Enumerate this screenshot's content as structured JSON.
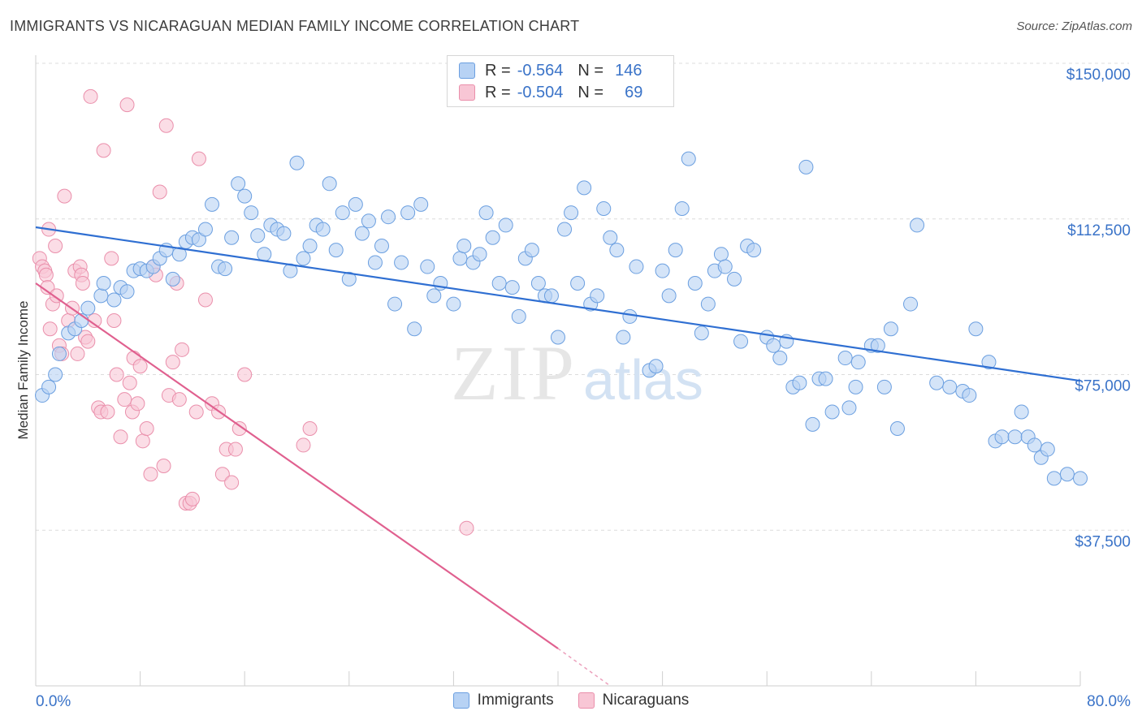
{
  "title": "IMMIGRANTS VS NICARAGUAN MEDIAN FAMILY INCOME CORRELATION CHART",
  "source": "Source: ZipAtlas.com",
  "watermark": {
    "zip": "ZIP",
    "atlas": "atlas"
  },
  "colors": {
    "immigrants_fill": "#b7d2f4",
    "immigrants_stroke": "#6b9fe0",
    "immigrants_line": "#2f6fd2",
    "nicaraguans_fill": "#f8c6d5",
    "nicaraguans_stroke": "#ea8fab",
    "nicaraguans_line": "#e0608f",
    "axis_label": "#3a73c8",
    "grid": "#dcdcdc"
  },
  "legend": {
    "rows": [
      {
        "r_label": "R =",
        "r_value": "-0.564",
        "n_label": "N =",
        "n_value": "146"
      },
      {
        "r_label": "R =",
        "r_value": "-0.504",
        "n_label": "N =",
        "n_value": "69"
      }
    ]
  },
  "bottom_legend": {
    "immigrants": "Immigrants",
    "nicaraguans": "Nicaraguans"
  },
  "chart_data": {
    "type": "scatter",
    "title": "IMMIGRANTS VS NICARAGUAN MEDIAN FAMILY INCOME CORRELATION CHART",
    "xlabel": "",
    "ylabel": "Median Family Income",
    "xlim": [
      0,
      80
    ],
    "ylim": [
      0,
      150000
    ],
    "x_tick_labels": [
      "0.0%",
      "80.0%"
    ],
    "y_ticks": [
      37500,
      75000,
      112500,
      150000
    ],
    "y_tick_labels": [
      "$37,500",
      "$75,000",
      "$112,500",
      "$150,000"
    ],
    "grid": "horizontal dashed",
    "legend_placement": "top-center",
    "series": [
      {
        "name": "Immigrants",
        "R": -0.564,
        "N": 146,
        "trend": {
          "x": [
            0,
            80
          ],
          "y": [
            110500,
            73500
          ]
        },
        "points": [
          [
            0.5,
            70000
          ],
          [
            1,
            72000
          ],
          [
            1.5,
            75000
          ],
          [
            1.8,
            80000
          ],
          [
            2.5,
            85000
          ],
          [
            3,
            86000
          ],
          [
            3.5,
            88000
          ],
          [
            4,
            91000
          ],
          [
            5,
            94000
          ],
          [
            5.2,
            97000
          ],
          [
            6,
            93000
          ],
          [
            6.5,
            96000
          ],
          [
            7,
            95000
          ],
          [
            7.5,
            100000
          ],
          [
            8,
            100500
          ],
          [
            8.5,
            100000
          ],
          [
            9,
            101000
          ],
          [
            9.5,
            103000
          ],
          [
            10,
            105000
          ],
          [
            10.5,
            98000
          ],
          [
            11,
            104000
          ],
          [
            11.5,
            107000
          ],
          [
            12,
            108000
          ],
          [
            12.5,
            107500
          ],
          [
            13,
            110000
          ],
          [
            13.5,
            116000
          ],
          [
            14,
            101000
          ],
          [
            14.5,
            100500
          ],
          [
            15,
            108000
          ],
          [
            15.5,
            121000
          ],
          [
            16,
            118000
          ],
          [
            16.5,
            114000
          ],
          [
            17,
            108500
          ],
          [
            17.5,
            104000
          ],
          [
            18,
            111000
          ],
          [
            18.5,
            110000
          ],
          [
            19,
            109000
          ],
          [
            19.5,
            100000
          ],
          [
            20,
            126000
          ],
          [
            20.5,
            103000
          ],
          [
            21,
            106000
          ],
          [
            21.5,
            111000
          ],
          [
            22,
            110000
          ],
          [
            22.5,
            121000
          ],
          [
            23,
            105000
          ],
          [
            23.5,
            114000
          ],
          [
            24,
            98000
          ],
          [
            24.5,
            116000
          ],
          [
            25,
            109000
          ],
          [
            25.5,
            112000
          ],
          [
            26,
            102000
          ],
          [
            26.5,
            106000
          ],
          [
            27,
            113000
          ],
          [
            27.5,
            92000
          ],
          [
            28,
            102000
          ],
          [
            28.5,
            114000
          ],
          [
            29,
            86000
          ],
          [
            29.5,
            116000
          ],
          [
            30,
            101000
          ],
          [
            30.5,
            94000
          ],
          [
            31,
            97000
          ],
          [
            32,
            92000
          ],
          [
            32.5,
            103000
          ],
          [
            32.8,
            106000
          ],
          [
            33.5,
            102000
          ],
          [
            34,
            104000
          ],
          [
            34.5,
            114000
          ],
          [
            35,
            108000
          ],
          [
            35.5,
            97000
          ],
          [
            36,
            111000
          ],
          [
            36.5,
            96000
          ],
          [
            37,
            89000
          ],
          [
            37.5,
            103000
          ],
          [
            38,
            105000
          ],
          [
            38.5,
            97000
          ],
          [
            39,
            94000
          ],
          [
            39.5,
            94000
          ],
          [
            40,
            84000
          ],
          [
            40.5,
            110000
          ],
          [
            41,
            114000
          ],
          [
            41.5,
            97000
          ],
          [
            42,
            120000
          ],
          [
            42.5,
            92000
          ],
          [
            43,
            94000
          ],
          [
            43.5,
            115000
          ],
          [
            44,
            108000
          ],
          [
            44.5,
            105000
          ],
          [
            45,
            84000
          ],
          [
            45.5,
            89000
          ],
          [
            46,
            101000
          ],
          [
            47,
            76000
          ],
          [
            47.5,
            77000
          ],
          [
            48,
            100000
          ],
          [
            48.5,
            94000
          ],
          [
            49,
            105000
          ],
          [
            49.5,
            115000
          ],
          [
            50,
            127000
          ],
          [
            50.5,
            97000
          ],
          [
            51,
            85000
          ],
          [
            51.5,
            92000
          ],
          [
            52,
            100000
          ],
          [
            52.5,
            104000
          ],
          [
            52.8,
            101000
          ],
          [
            53.5,
            98000
          ],
          [
            54,
            83000
          ],
          [
            54.5,
            106000
          ],
          [
            55,
            105000
          ],
          [
            56,
            84000
          ],
          [
            56.5,
            82000
          ],
          [
            57,
            79000
          ],
          [
            57.5,
            83000
          ],
          [
            58,
            72000
          ],
          [
            58.5,
            73000
          ],
          [
            59,
            125000
          ],
          [
            59.5,
            63000
          ],
          [
            60,
            74000
          ],
          [
            60.5,
            74000
          ],
          [
            61,
            66000
          ],
          [
            62,
            79000
          ],
          [
            62.3,
            67000
          ],
          [
            62.8,
            72000
          ],
          [
            63,
            78000
          ],
          [
            64,
            82000
          ],
          [
            64.5,
            82000
          ],
          [
            65,
            72000
          ],
          [
            65.5,
            86000
          ],
          [
            66,
            62000
          ],
          [
            67,
            92000
          ],
          [
            67.5,
            111000
          ],
          [
            69,
            73000
          ],
          [
            70,
            72000
          ],
          [
            71,
            71000
          ],
          [
            71.5,
            70000
          ],
          [
            72,
            86000
          ],
          [
            73,
            78000
          ],
          [
            73.5,
            59000
          ],
          [
            74,
            60000
          ],
          [
            75,
            60000
          ],
          [
            75.5,
            66000
          ],
          [
            76,
            60000
          ],
          [
            76.5,
            58000
          ],
          [
            77,
            55000
          ],
          [
            77.5,
            57000
          ],
          [
            78,
            50000
          ],
          [
            79,
            51000
          ],
          [
            80,
            50000
          ]
        ]
      },
      {
        "name": "Nicaraguans",
        "R": -0.504,
        "N": 69,
        "trend": {
          "x": [
            0,
            40
          ],
          "y": [
            97000,
            9000
          ]
        },
        "trend_dashed": {
          "x": [
            40,
            44
          ],
          "y": [
            9000,
            0
          ]
        },
        "points": [
          [
            0.3,
            103000
          ],
          [
            0.5,
            101000
          ],
          [
            0.7,
            100000
          ],
          [
            0.8,
            99000
          ],
          [
            0.9,
            96000
          ],
          [
            1,
            110000
          ],
          [
            1.1,
            86000
          ],
          [
            1.3,
            92000
          ],
          [
            1.5,
            106000
          ],
          [
            1.6,
            94000
          ],
          [
            1.8,
            82000
          ],
          [
            2,
            80000
          ],
          [
            2.2,
            118000
          ],
          [
            2.5,
            88000
          ],
          [
            2.8,
            91000
          ],
          [
            3,
            100000
          ],
          [
            3.2,
            80000
          ],
          [
            3.4,
            101000
          ],
          [
            3.5,
            99000
          ],
          [
            3.6,
            97000
          ],
          [
            3.8,
            84000
          ],
          [
            4,
            83000
          ],
          [
            4.2,
            142000
          ],
          [
            4.5,
            88000
          ],
          [
            4.8,
            67000
          ],
          [
            5,
            66000
          ],
          [
            5.2,
            129000
          ],
          [
            5.5,
            66000
          ],
          [
            5.8,
            103000
          ],
          [
            6,
            88000
          ],
          [
            6.2,
            75000
          ],
          [
            6.5,
            60000
          ],
          [
            6.8,
            69000
          ],
          [
            7,
            140000
          ],
          [
            7.2,
            73000
          ],
          [
            7.4,
            66000
          ],
          [
            7.5,
            79000
          ],
          [
            7.8,
            68000
          ],
          [
            8,
            77000
          ],
          [
            8.2,
            59000
          ],
          [
            8.5,
            62000
          ],
          [
            8.8,
            51000
          ],
          [
            9,
            101000
          ],
          [
            9.2,
            99000
          ],
          [
            9.5,
            119000
          ],
          [
            9.8,
            53000
          ],
          [
            10,
            135000
          ],
          [
            10.2,
            70000
          ],
          [
            10.5,
            78000
          ],
          [
            10.8,
            97000
          ],
          [
            11,
            69000
          ],
          [
            11.2,
            81000
          ],
          [
            11.5,
            44000
          ],
          [
            11.8,
            44000
          ],
          [
            12,
            45000
          ],
          [
            12.3,
            66000
          ],
          [
            12.5,
            127000
          ],
          [
            13,
            93000
          ],
          [
            13.5,
            68000
          ],
          [
            14,
            66000
          ],
          [
            14.3,
            51000
          ],
          [
            14.6,
            57000
          ],
          [
            15,
            49000
          ],
          [
            15.3,
            57000
          ],
          [
            15.6,
            62000
          ],
          [
            16,
            75000
          ],
          [
            20.5,
            58000
          ],
          [
            21,
            62000
          ],
          [
            33,
            38000
          ]
        ]
      }
    ]
  }
}
